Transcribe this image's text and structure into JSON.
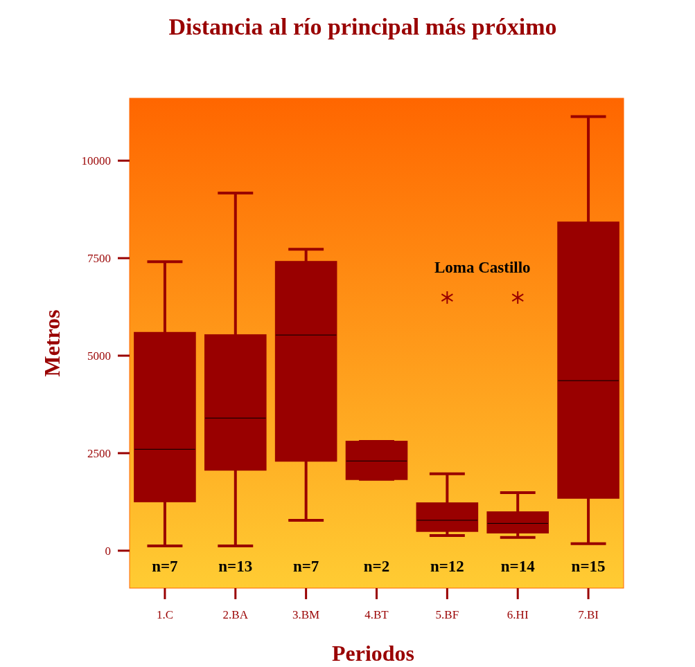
{
  "chart_data": {
    "type": "box",
    "title": "Distancia al río principal más próximo",
    "xlabel": "Periodos",
    "ylabel": "Metros",
    "categories": [
      "1.C",
      "2.BA",
      "3.BM",
      "4.BT",
      "5.BF",
      "6.HI",
      "7.BI"
    ],
    "color": "#990000",
    "boxes": [
      {
        "low": 120,
        "q1": 1260,
        "median": 2600,
        "q3": 5590,
        "high": 7410
      },
      {
        "low": 120,
        "q1": 2070,
        "median": 3400,
        "q3": 5530,
        "high": 9170
      },
      {
        "low": 780,
        "q1": 2300,
        "median": 5530,
        "q3": 7410,
        "high": 7730
      },
      {
        "low": 1830,
        "q1": 1830,
        "median": 2300,
        "q3": 2800,
        "high": 2800
      },
      {
        "low": 390,
        "q1": 500,
        "median": 780,
        "q3": 1220,
        "high": 1970,
        "outliers": [
          6490
        ]
      },
      {
        "low": 340,
        "q1": 460,
        "median": 700,
        "q3": 990,
        "high": 1490,
        "outliers": [
          6490
        ]
      },
      {
        "low": 180,
        "q1": 1350,
        "median": 4360,
        "q3": 8420,
        "high": 11130
      }
    ],
    "ylim": [
      -960,
      11600
    ],
    "yticks": [
      0,
      2500,
      5000,
      7500,
      10000
    ],
    "grid": false,
    "marker": "star",
    "annotations": [
      "Loma Castillo",
      "n=7",
      "n=13",
      "n=7",
      "n=2",
      "n=12",
      "n=14",
      "n=15"
    ]
  }
}
